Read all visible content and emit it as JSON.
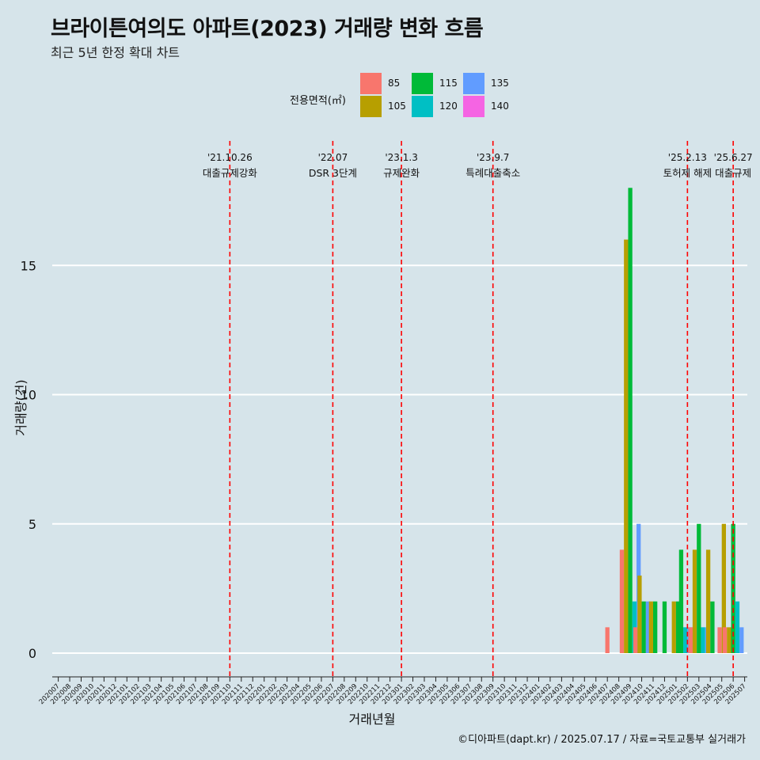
{
  "title": "브라이튼여의도 아파트(2023) 거래량 변화 흐름",
  "subtitle": "최근 5년 한정 확대 차트",
  "caption": "©디아파트(dapt.kr) / 2025.07.17 / 자료=국토교통부 실거래가",
  "legend": {
    "title": "전용면적(㎡)",
    "items": [
      {
        "label": "85",
        "color": "#f8766d"
      },
      {
        "label": "105",
        "color": "#b79f00"
      },
      {
        "label": "115",
        "color": "#00ba38"
      },
      {
        "label": "120",
        "color": "#00bfc4"
      },
      {
        "label": "135",
        "color": "#619cff"
      },
      {
        "label": "140",
        "color": "#f564e3"
      }
    ]
  },
  "chart_data": {
    "type": "bar",
    "xlabel": "거래년월",
    "ylabel": "거래량(건)",
    "ylim": [
      0,
      18.5
    ],
    "yticks": [
      0,
      5,
      10,
      15
    ],
    "categories": [
      "202007",
      "202008",
      "202009",
      "202010",
      "202011",
      "202012",
      "202101",
      "202102",
      "202103",
      "202104",
      "202105",
      "202106",
      "202107",
      "202108",
      "202109",
      "202110",
      "202111",
      "202112",
      "202201",
      "202202",
      "202203",
      "202204",
      "202205",
      "202206",
      "202207",
      "202208",
      "202209",
      "202210",
      "202211",
      "202212",
      "202301",
      "202302",
      "202303",
      "202304",
      "202305",
      "202306",
      "202307",
      "202308",
      "202309",
      "202310",
      "202311",
      "202312",
      "202401",
      "202402",
      "202403",
      "202404",
      "202405",
      "202406",
      "202407",
      "202408",
      "202409",
      "202410",
      "202411",
      "202412",
      "202501",
      "202502",
      "202503",
      "202504",
      "202505",
      "202506",
      "202507"
    ],
    "series": [
      {
        "name": "85",
        "color": "#f8766d",
        "values": {
          "202407": 1,
          "202409": 4,
          "202410": 1,
          "202503": 1,
          "202505": 1,
          "202506": 1
        }
      },
      {
        "name": "105",
        "color": "#b79f00",
        "values": {
          "202409": 16,
          "202410": 3,
          "202411": 2,
          "202501": 2,
          "202503": 4,
          "202504": 4,
          "202505": 5,
          "202506": 1
        }
      },
      {
        "name": "115",
        "color": "#00ba38",
        "values": {
          "202409": 18,
          "202410": 2,
          "202411": 2,
          "202412": 2,
          "202501": 2,
          "202502": 4,
          "202503": 5,
          "202504": 2,
          "202506": 5
        }
      },
      {
        "name": "120",
        "color": "#00bfc4",
        "values": {
          "202409": 2,
          "202502": 1,
          "202503": 1,
          "202506": 2
        }
      },
      {
        "name": "135",
        "color": "#619cff",
        "values": {
          "202409": 5,
          "202410": 2,
          "202502": 1,
          "202503": 1,
          "202506": 1
        }
      },
      {
        "name": "140",
        "color": "#f564e3",
        "values": {
          "202502": 1
        }
      }
    ],
    "annotations": [
      {
        "x": "202110",
        "date": "'21.10.26",
        "text": "대출규제강화"
      },
      {
        "x": "202207",
        "date": "'22.07",
        "text": "DSR 3단계"
      },
      {
        "x": "202301",
        "date": "'23.1.3",
        "text": "규제완화"
      },
      {
        "x": "202309",
        "date": "'23.9.7",
        "text": "특례대출축소"
      },
      {
        "x": "202502",
        "date": "'25.2.13",
        "text": "토허제 해제"
      },
      {
        "x": "202506",
        "date": "'25.6.27",
        "text": "대출규제"
      }
    ]
  }
}
